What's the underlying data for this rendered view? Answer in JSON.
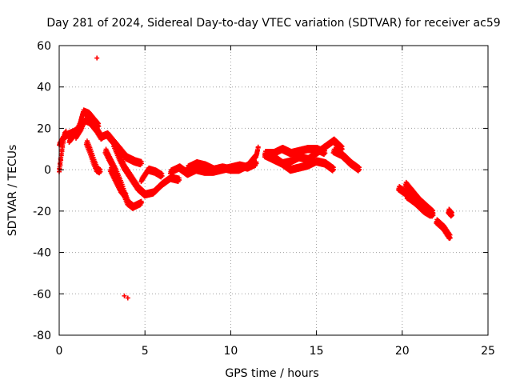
{
  "chart_data": {
    "type": "scatter",
    "title": "Day 281 of 2024, Sidereal Day-to-day VTEC variation (SDTVAR) for receiver ac59",
    "xlabel": "GPS time / hours",
    "ylabel": "SDTVAR / TECUs",
    "xlim": [
      0,
      25
    ],
    "ylim": [
      -80,
      60
    ],
    "xticks": [
      0,
      5,
      10,
      15,
      20,
      25
    ],
    "yticks": [
      -80,
      -60,
      -40,
      -20,
      0,
      20,
      40,
      60
    ],
    "grid": true,
    "marker": "+",
    "series_color": "#ff0000",
    "series": [
      {
        "name": "SDTVAR",
        "tracks": [
          [
            [
              0.0,
              -1
            ],
            [
              0.1,
              6
            ],
            [
              0.2,
              12
            ],
            [
              0.3,
              17
            ],
            [
              0.4,
              18
            ]
          ],
          [
            [
              0.0,
              12
            ],
            [
              0.2,
              15
            ],
            [
              0.5,
              17
            ],
            [
              0.8,
              18
            ],
            [
              1.0,
              19
            ]
          ],
          [
            [
              0.6,
              14
            ],
            [
              0.9,
              17
            ],
            [
              1.2,
              22
            ],
            [
              1.4,
              28
            ],
            [
              1.7,
              27
            ],
            [
              2.0,
              24
            ],
            [
              2.3,
              21
            ]
          ],
          [
            [
              1.0,
              16
            ],
            [
              1.3,
              20
            ],
            [
              1.5,
              24
            ],
            [
              1.8,
              23
            ],
            [
              2.2,
              19
            ],
            [
              2.5,
              15
            ]
          ],
          [
            [
              1.6,
              13
            ],
            [
              1.8,
              9
            ],
            [
              2.0,
              4
            ],
            [
              2.2,
              0
            ],
            [
              2.4,
              -1
            ]
          ],
          [
            [
              2.5,
              16
            ],
            [
              2.8,
              17
            ],
            [
              3.1,
              14
            ],
            [
              3.5,
              10
            ],
            [
              3.9,
              6
            ],
            [
              4.4,
              4
            ],
            [
              4.8,
              3
            ]
          ],
          [
            [
              2.7,
              9
            ],
            [
              3.0,
              4
            ],
            [
              3.3,
              -1
            ],
            [
              3.6,
              -7
            ],
            [
              3.8,
              -12
            ],
            [
              4.0,
              -16
            ],
            [
              4.3,
              -18
            ],
            [
              4.8,
              -16
            ]
          ],
          [
            [
              3.2,
              12
            ],
            [
              3.5,
              6
            ],
            [
              3.8,
              1
            ],
            [
              4.2,
              -4
            ],
            [
              4.6,
              -9
            ],
            [
              5.0,
              -12
            ],
            [
              5.5,
              -11
            ],
            [
              6.0,
              -7
            ],
            [
              6.5,
              -4
            ],
            [
              7.0,
              -5
            ]
          ],
          [
            [
              3.0,
              0
            ],
            [
              3.3,
              -5
            ],
            [
              3.6,
              -10
            ],
            [
              3.9,
              -13
            ]
          ],
          [
            [
              4.8,
              -5
            ],
            [
              5.2,
              0
            ],
            [
              5.6,
              -1
            ],
            [
              6.0,
              -3
            ]
          ],
          [
            [
              6.5,
              -1
            ],
            [
              7.0,
              1
            ],
            [
              7.5,
              -2
            ],
            [
              8.0,
              0
            ],
            [
              8.5,
              -1
            ],
            [
              9.0,
              -1
            ],
            [
              9.5,
              0
            ],
            [
              10.0,
              1
            ],
            [
              10.5,
              2
            ],
            [
              11.0,
              1
            ],
            [
              11.5,
              3
            ]
          ],
          [
            [
              7.5,
              1
            ],
            [
              8.0,
              3
            ],
            [
              8.5,
              2
            ],
            [
              9.0,
              0
            ],
            [
              9.5,
              1
            ],
            [
              10.0,
              0
            ],
            [
              10.5,
              0
            ],
            [
              11.0,
              2
            ],
            [
              11.5,
              7
            ],
            [
              11.6,
              11
            ]
          ],
          [
            [
              12.0,
              7
            ],
            [
              12.5,
              5
            ],
            [
              13.0,
              3
            ],
            [
              13.5,
              4
            ],
            [
              14.0,
              6
            ],
            [
              14.5,
              5
            ],
            [
              15.0,
              8
            ],
            [
              15.5,
              11
            ],
            [
              16.0,
              14
            ],
            [
              16.5,
              10
            ]
          ],
          [
            [
              12.0,
              8
            ],
            [
              12.5,
              8
            ],
            [
              13.0,
              10
            ],
            [
              13.5,
              8
            ],
            [
              14.0,
              9
            ],
            [
              14.5,
              10
            ],
            [
              15.0,
              10
            ],
            [
              15.5,
              8
            ]
          ],
          [
            [
              12.5,
              6
            ],
            [
              13.0,
              3
            ],
            [
              13.5,
              0
            ],
            [
              14.0,
              1
            ],
            [
              14.5,
              2
            ],
            [
              15.0,
              4
            ],
            [
              15.5,
              3
            ],
            [
              16.0,
              0
            ]
          ],
          [
            [
              16.0,
              9
            ],
            [
              16.5,
              7
            ],
            [
              17.0,
              3
            ],
            [
              17.5,
              0
            ]
          ],
          [
            [
              19.8,
              -9
            ],
            [
              20.3,
              -12
            ],
            [
              20.8,
              -16
            ],
            [
              21.3,
              -19
            ],
            [
              21.8,
              -22
            ]
          ],
          [
            [
              20.2,
              -7
            ],
            [
              20.6,
              -11
            ],
            [
              21.0,
              -15
            ],
            [
              21.4,
              -18
            ],
            [
              21.8,
              -21
            ]
          ],
          [
            [
              20.3,
              -13
            ],
            [
              20.8,
              -16
            ],
            [
              21.3,
              -20
            ],
            [
              21.7,
              -22
            ]
          ],
          [
            [
              22.0,
              -25
            ],
            [
              22.4,
              -28
            ],
            [
              22.8,
              -33
            ]
          ],
          [
            [
              22.7,
              -20
            ],
            [
              22.8,
              -21
            ],
            [
              22.9,
              -22
            ]
          ]
        ],
        "outliers": [
          [
            2.2,
            54
          ],
          [
            3.8,
            -61
          ],
          [
            4.0,
            -62
          ]
        ]
      }
    ]
  }
}
